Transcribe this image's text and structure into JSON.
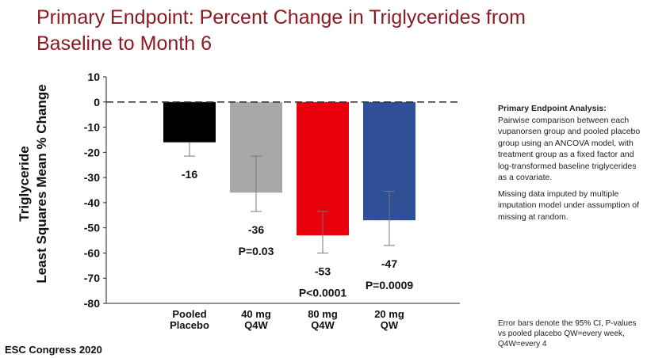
{
  "chart_data": {
    "type": "bar",
    "title": "Primary Endpoint: Percent Change in Triglycerides from Baseline to Month 6",
    "ylabel_lines": [
      "Triglyceride",
      "Least Squares Mean % Change"
    ],
    "xlabel": "",
    "ylim": [
      -80,
      10
    ],
    "yticks": [
      10,
      0,
      -10,
      -20,
      -30,
      -40,
      -50,
      -60,
      -70,
      -80
    ],
    "reference_line_y": 0,
    "categories": [
      [
        "Pooled",
        "Placebo"
      ],
      [
        "40 mg",
        "Q4W"
      ],
      [
        "80 mg",
        "Q4W"
      ],
      [
        "20 mg",
        "QW"
      ]
    ],
    "values": [
      -16,
      -36,
      -53,
      -47
    ],
    "value_labels": [
      "-16",
      "-36",
      "-53",
      "-47"
    ],
    "error_low": [
      -21.5,
      -43.5,
      -60,
      -57
    ],
    "error_high": [
      -16,
      -21.5,
      -43.5,
      -35.5
    ],
    "p_values": [
      "",
      "P=0.03",
      "P<0.0001",
      "P=0.0009"
    ],
    "colors": [
      "#000000",
      "#a8a8a8",
      "#e8000d",
      "#2f4f96"
    ]
  },
  "analysis": {
    "heading": "Primary Endpoint Analysis:",
    "paragraph1": "Pairwise comparison between each vupanorsen group and pooled placebo group using an ANCOVA model, with treatment group as a fixed factor and log-transformed baseline triglycerides as a covariate.",
    "paragraph2": "Missing data imputed by multiple imputation model under assumption of missing at random."
  },
  "footnote": "Error bars denote the 95% CI, P-values vs pooled placebo QW=every week, Q4W=every 4",
  "congress": "ESC Congress 2020",
  "colors": {
    "title": "#8b1a22"
  }
}
